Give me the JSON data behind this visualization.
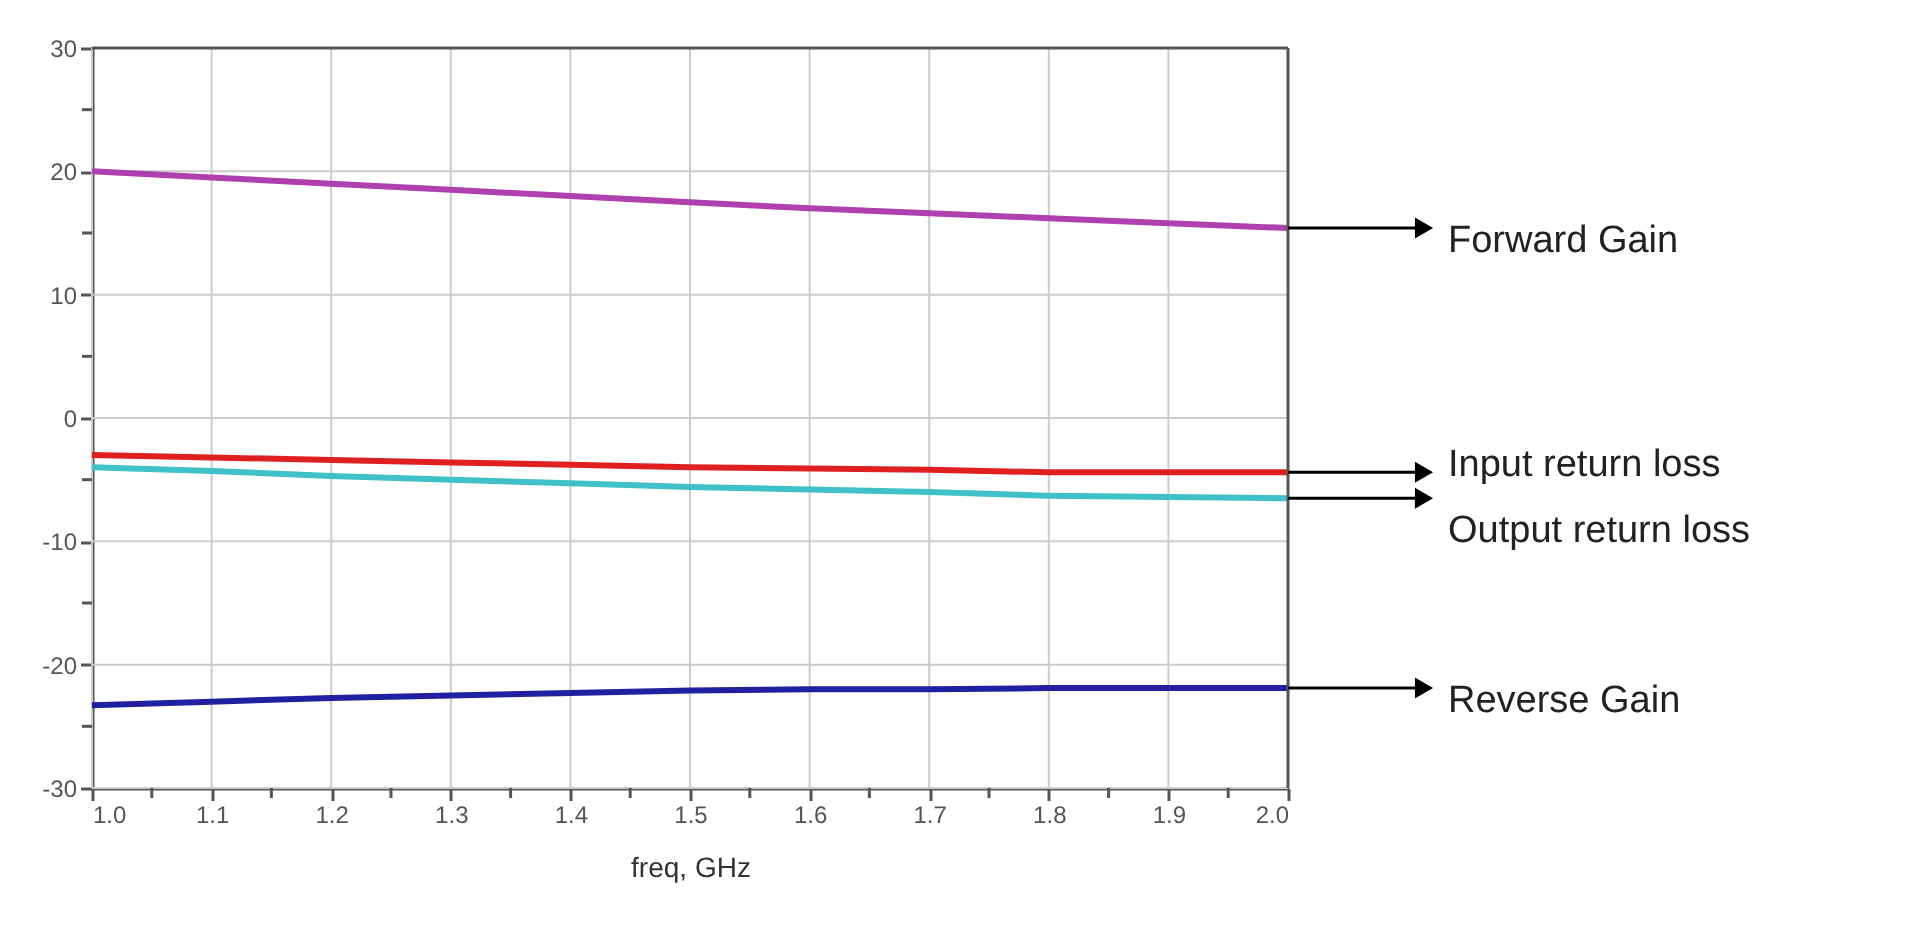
{
  "chart_data": {
    "type": "line",
    "xlabel": "freq, GHz",
    "x": [
      1.0,
      1.1,
      1.2,
      1.3,
      1.4,
      1.5,
      1.6,
      1.7,
      1.8,
      1.9,
      2.0
    ],
    "series": [
      {
        "name": "Forward Gain",
        "color": "#b040b0",
        "values": [
          20,
          19.5,
          19,
          18.5,
          18,
          17.5,
          17,
          16.6,
          16.2,
          15.8,
          15.4
        ]
      },
      {
        "name": "Input return loss",
        "color": "#e02020",
        "values": [
          -3,
          -3.2,
          -3.4,
          -3.6,
          -3.8,
          -4,
          -4.1,
          -4.2,
          -4.4,
          -4.4,
          -4.4
        ]
      },
      {
        "name": "Output return loss",
        "color": "#40c0c8",
        "values": [
          -4,
          -4.3,
          -4.7,
          -5,
          -5.3,
          -5.6,
          -5.8,
          -6,
          -6.3,
          -6.4,
          -6.5
        ]
      },
      {
        "name": "Reverse Gain",
        "color": "#2020a0",
        "values": [
          -23.3,
          -23,
          -22.7,
          -22.5,
          -22.3,
          -22.1,
          -22,
          -22,
          -21.9,
          -21.9,
          -21.9
        ]
      }
    ],
    "xlim": [
      1.0,
      2.0
    ],
    "xticks": [
      {
        "value": 1.0,
        "label": "1.0"
      },
      {
        "value": 1.05,
        "label": null
      },
      {
        "value": 1.1,
        "label": "1.1"
      },
      {
        "value": 1.15,
        "label": null
      },
      {
        "value": 1.2,
        "label": "1.2"
      },
      {
        "value": 1.25,
        "label": null
      },
      {
        "value": 1.3,
        "label": "1.3"
      },
      {
        "value": 1.35,
        "label": null
      },
      {
        "value": 1.4,
        "label": "1.4"
      },
      {
        "value": 1.45,
        "label": null
      },
      {
        "value": 1.5,
        "label": "1.5"
      },
      {
        "value": 1.55,
        "label": null
      },
      {
        "value": 1.6,
        "label": "1.6"
      },
      {
        "value": 1.65,
        "label": null
      },
      {
        "value": 1.7,
        "label": "1.7"
      },
      {
        "value": 1.75,
        "label": null
      },
      {
        "value": 1.8,
        "label": "1.8"
      },
      {
        "value": 1.85,
        "label": null
      },
      {
        "value": 1.9,
        "label": "1.9"
      },
      {
        "value": 1.95,
        "label": null
      },
      {
        "value": 2.0,
        "label": "2.0"
      }
    ],
    "ylim": [
      -30,
      30
    ],
    "yticks": [
      -30,
      {
        "value": -25,
        "label": null
      },
      -20,
      {
        "value": -15,
        "label": null
      },
      -10,
      {
        "value": -5,
        "label": null
      },
      0,
      {
        "value": 5,
        "label": null
      },
      10,
      {
        "value": 15,
        "label": null
      },
      20,
      {
        "value": 25,
        "label": null
      },
      30
    ],
    "grid": true,
    "legend": false,
    "marker": "none",
    "line_style": "solid"
  }
}
